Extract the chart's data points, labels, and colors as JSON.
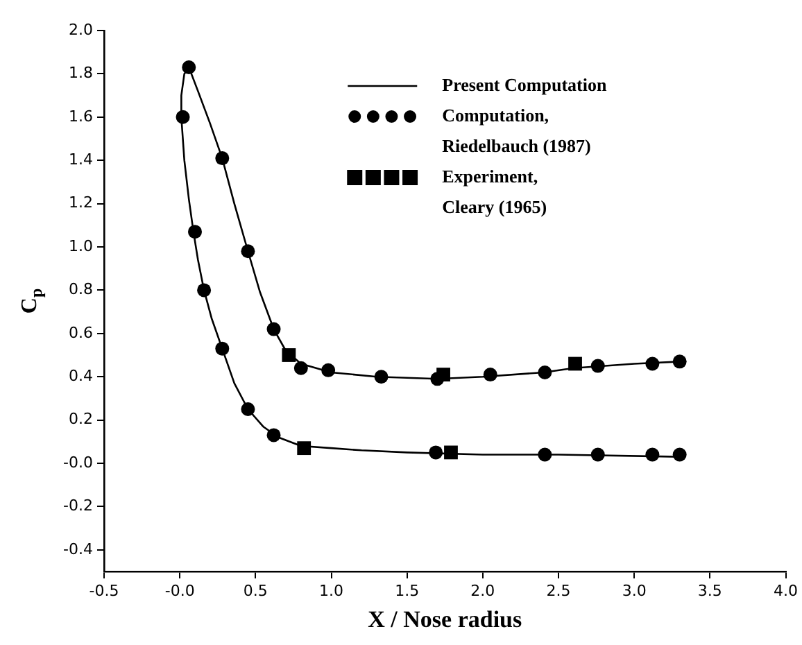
{
  "chart_data": {
    "type": "line",
    "xlabel": "X / Nose radius",
    "ylabel": "C$_{p}$",
    "xlim": [
      -0.5,
      4.0
    ],
    "xticks": [
      {
        "value": -0.5,
        "label": "-0.5"
      },
      {
        "value": 0,
        "label": "-0.0"
      },
      {
        "value": 0.5,
        "label": "0.5"
      },
      {
        "value": 1,
        "label": "1.0"
      },
      {
        "value": 1.5,
        "label": "1.5"
      },
      {
        "value": 2,
        "label": "2.0"
      },
      {
        "value": 2.5,
        "label": "2.5"
      },
      {
        "value": 3,
        "label": "3.0"
      },
      {
        "value": 3.5,
        "label": "3.5"
      },
      {
        "value": 4,
        "label": "4.0"
      }
    ],
    "ylim": [
      -0.5,
      2.0
    ],
    "yticks": [
      {
        "value": -0.4,
        "label": "-0.4"
      },
      {
        "value": -0.2,
        "label": "-0.2"
      },
      {
        "value": 0,
        "label": "-0.0"
      },
      {
        "value": 0.2,
        "label": "0.2"
      },
      {
        "value": 0.4,
        "label": "0.4"
      },
      {
        "value": 0.6,
        "label": "0.6"
      },
      {
        "value": 0.8,
        "label": "0.8"
      },
      {
        "value": 1,
        "label": "1.0"
      },
      {
        "value": 1.2,
        "label": "1.2"
      },
      {
        "value": 1.4,
        "label": "1.4"
      },
      {
        "value": 1.6,
        "label": "1.6"
      },
      {
        "value": 1.8,
        "label": "1.8"
      },
      {
        "value": 2,
        "label": "2.0"
      }
    ],
    "grid": false,
    "legend": "top",
    "series": [
      {
        "name": "Present Computation",
        "type": "line",
        "color": "#000000",
        "marker": "none",
        "line_style": "solid",
        "x": [
          3.3,
          2.5,
          2.0,
          1.5,
          1.2,
          1.0,
          0.8,
          0.65,
          0.55,
          0.45,
          0.36,
          0.28,
          0.21,
          0.16,
          0.12,
          0.09,
          0.06,
          0.03,
          0.01,
          0.01,
          0.03,
          0.06,
          0.12,
          0.2,
          0.28,
          0.36,
          0.45,
          0.53,
          0.62,
          0.7,
          0.8,
          1.0,
          1.3,
          1.7,
          2.0,
          2.4,
          2.6,
          3.0,
          3.3
        ],
        "values": [
          0.03,
          0.04,
          0.04,
          0.05,
          0.06,
          0.07,
          0.08,
          0.12,
          0.17,
          0.25,
          0.37,
          0.53,
          0.67,
          0.8,
          0.94,
          1.07,
          1.22,
          1.4,
          1.6,
          1.7,
          1.8,
          1.83,
          1.72,
          1.57,
          1.41,
          1.2,
          0.98,
          0.79,
          0.62,
          0.52,
          0.46,
          0.42,
          0.4,
          0.39,
          0.4,
          0.42,
          0.44,
          0.46,
          0.47
        ]
      },
      {
        "name": "Computation, Riedelbauch (1987)",
        "type": "scatter",
        "color": "#000000",
        "marker": "circle",
        "x": [
          0.02,
          0.06,
          0.28,
          0.45,
          0.62,
          0.8,
          0.98,
          1.33,
          1.7,
          2.05,
          2.41,
          2.76,
          3.12,
          3.3,
          0.1,
          0.16,
          0.28,
          0.45,
          0.62,
          1.69,
          2.41,
          2.76,
          3.12,
          3.3
        ],
        "values": [
          1.6,
          1.83,
          1.41,
          0.98,
          0.62,
          0.44,
          0.43,
          0.4,
          0.39,
          0.41,
          0.42,
          0.45,
          0.46,
          0.47,
          1.07,
          0.8,
          0.53,
          0.25,
          0.13,
          0.05,
          0.04,
          0.04,
          0.04,
          0.04
        ]
      },
      {
        "name": "Experiment, Cleary (1965)",
        "type": "scatter",
        "color": "#000000",
        "marker": "square",
        "x": [
          0.72,
          1.74,
          2.61,
          0.82,
          1.79
        ],
        "values": [
          0.5,
          0.41,
          0.46,
          0.07,
          0.05
        ]
      }
    ]
  }
}
